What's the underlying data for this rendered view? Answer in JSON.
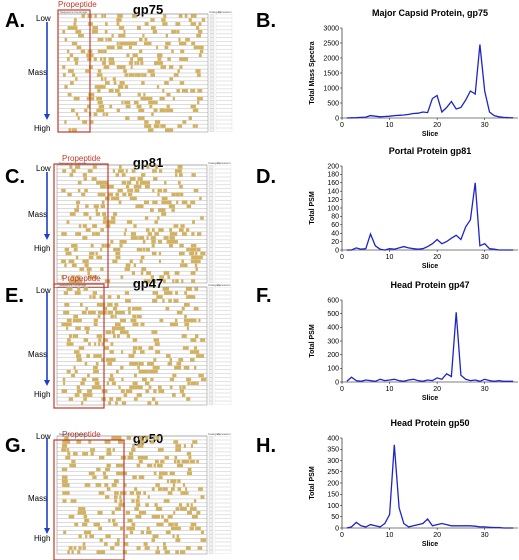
{
  "left_panels": [
    {
      "letter": "A.",
      "protein": "gp75",
      "propeptide_label": "Propeptide",
      "low": "Low",
      "mass": "Mass",
      "high": "High",
      "table_header_col1": "Sequence Coverage",
      "table_header_col2": "Category",
      "table_header_col3": "Accession",
      "accession": "SPHU13_24GP75"
    },
    {
      "letter": "C.",
      "protein": "gp81",
      "propeptide_label": "Propeptide",
      "low": "Low",
      "mass": "Mass",
      "high": "High",
      "table_header_col1": "Sequence Coverage",
      "table_header_col2": "Category",
      "table_header_col3": "Accession",
      "accession": "SPHU13_24GP81"
    },
    {
      "letter": "E.",
      "protein": "gp47",
      "propeptide_label": "Propeptide",
      "low": "Low",
      "mass": "Mass",
      "high": "High",
      "table_header_col1": "Sequence Coverage",
      "table_header_col2": "Category",
      "table_header_col3": "Accession",
      "accession": "SPHU13_24GP47"
    },
    {
      "letter": "G.",
      "protein": "gp50",
      "propeptide_label": "Propeptide",
      "low": "Low",
      "mass": "Mass",
      "high": "High",
      "table_header_col1": "Sequence Coverage",
      "table_header_col2": "Category",
      "table_header_col3": "Accession",
      "accession": "SPHU13_24GP50"
    }
  ],
  "colors": {
    "coverage": "#d4b15a",
    "propeptide_box": "#c0392b",
    "arrow": "#1f3fc5",
    "line": "#1f24c8"
  },
  "chart_data": [
    {
      "type": "line",
      "letter": "B.",
      "title": "Major Capsid Protein, gp75",
      "xlabel": "Slice",
      "ylabel": "Total Mass Spectra",
      "xlim": [
        0,
        37
      ],
      "ylim": [
        0,
        3000
      ],
      "xticks": [
        0,
        10,
        20,
        30
      ],
      "yticks": [
        0,
        500,
        1000,
        1500,
        2000,
        2500,
        3000
      ],
      "x": [
        1,
        2,
        3,
        4,
        5,
        6,
        7,
        8,
        9,
        10,
        11,
        12,
        13,
        14,
        15,
        16,
        17,
        18,
        19,
        20,
        21,
        22,
        23,
        24,
        25,
        26,
        27,
        28,
        29,
        30,
        31,
        32,
        33,
        34,
        35,
        36
      ],
      "y": [
        0,
        5,
        10,
        20,
        30,
        80,
        60,
        40,
        50,
        60,
        80,
        90,
        100,
        120,
        150,
        160,
        200,
        180,
        650,
        750,
        200,
        350,
        550,
        300,
        350,
        600,
        900,
        800,
        2450,
        900,
        200,
        80,
        40,
        20,
        10,
        5
      ]
    },
    {
      "type": "line",
      "letter": "D.",
      "title": "Portal Protein gp81",
      "xlabel": "Slice",
      "ylabel": "Total PSM",
      "xlim": [
        0,
        37
      ],
      "ylim": [
        0,
        200
      ],
      "xticks": [
        0,
        10,
        20,
        30
      ],
      "yticks": [
        0,
        20,
        40,
        60,
        80,
        100,
        120,
        140,
        160,
        180,
        200
      ],
      "x": [
        1,
        2,
        3,
        4,
        5,
        6,
        7,
        8,
        9,
        10,
        11,
        12,
        13,
        14,
        15,
        16,
        17,
        18,
        19,
        20,
        21,
        22,
        23,
        24,
        25,
        26,
        27,
        28,
        29,
        30,
        31,
        32,
        33,
        34,
        35,
        36
      ],
      "y": [
        0,
        0,
        5,
        2,
        3,
        38,
        10,
        2,
        0,
        3,
        2,
        5,
        8,
        5,
        3,
        2,
        3,
        8,
        15,
        25,
        15,
        20,
        28,
        35,
        25,
        55,
        72,
        160,
        10,
        15,
        3,
        2,
        0,
        0,
        0,
        0
      ]
    },
    {
      "type": "line",
      "letter": "F.",
      "title": "Head Protein gp47",
      "xlabel": "Slice",
      "ylabel": "Total PSM",
      "xlim": [
        0,
        37
      ],
      "ylim": [
        0,
        600
      ],
      "xticks": [
        0,
        10,
        20,
        30
      ],
      "yticks": [
        0,
        100,
        200,
        300,
        400,
        500,
        600
      ],
      "x": [
        1,
        2,
        3,
        4,
        5,
        6,
        7,
        8,
        9,
        10,
        11,
        12,
        13,
        14,
        15,
        16,
        17,
        18,
        19,
        20,
        21,
        22,
        23,
        24,
        25,
        26,
        27,
        28,
        29,
        30,
        31,
        32,
        33,
        34,
        35,
        36
      ],
      "y": [
        5,
        35,
        10,
        5,
        15,
        10,
        5,
        20,
        10,
        15,
        20,
        10,
        5,
        15,
        20,
        10,
        5,
        15,
        10,
        30,
        20,
        60,
        40,
        510,
        50,
        20,
        10,
        15,
        5,
        20,
        10,
        5,
        10,
        5,
        5,
        5
      ]
    },
    {
      "type": "line",
      "letter": "H.",
      "title": "Head Protein gp50",
      "xlabel": "Slice",
      "ylabel": "Total PSM",
      "xlim": [
        0,
        37
      ],
      "ylim": [
        0,
        400
      ],
      "xticks": [
        0,
        10,
        20,
        30
      ],
      "yticks": [
        0,
        50,
        100,
        150,
        200,
        250,
        300,
        350,
        400
      ],
      "x": [
        1,
        2,
        3,
        4,
        5,
        6,
        7,
        8,
        9,
        10,
        11,
        12,
        13,
        14,
        15,
        16,
        17,
        18,
        19,
        20,
        21,
        22,
        23,
        24,
        25,
        26,
        27,
        28,
        29,
        30,
        31,
        32,
        33,
        34,
        35,
        36
      ],
      "y": [
        0,
        5,
        25,
        10,
        5,
        15,
        10,
        5,
        20,
        60,
        370,
        90,
        20,
        5,
        10,
        15,
        20,
        40,
        10,
        15,
        20,
        15,
        10,
        10,
        10,
        10,
        10,
        8,
        5,
        5,
        3,
        2,
        2,
        0,
        0,
        0
      ]
    }
  ]
}
